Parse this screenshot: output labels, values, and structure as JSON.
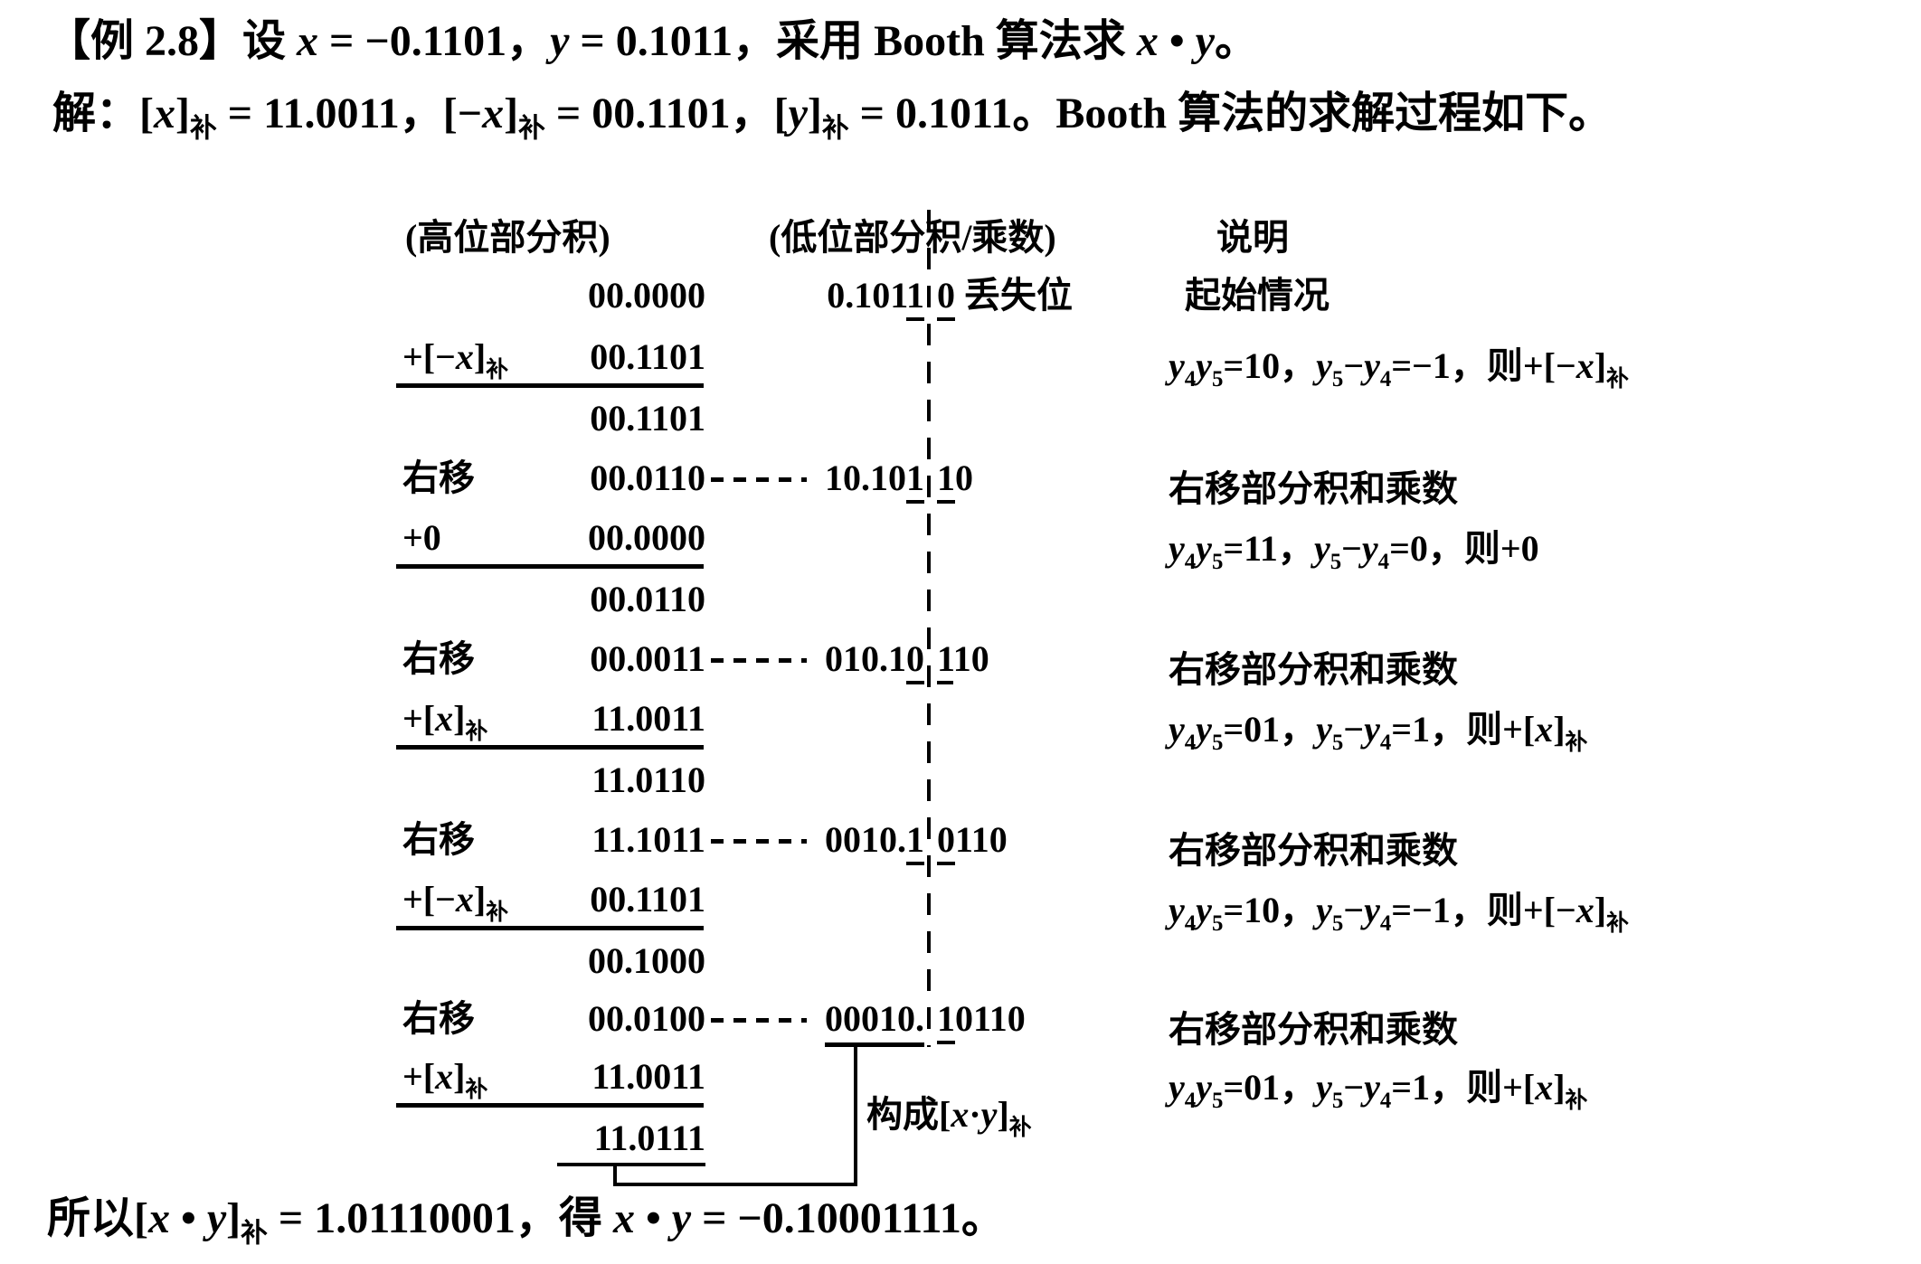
{
  "colors": {
    "ink": "#000000",
    "paper": "#ffffff"
  },
  "line1": [
    [
      "【例 2.8】",
      "b"
    ],
    [
      "设 ",
      ""
    ],
    [
      "x",
      "i"
    ],
    [
      " = −0.1101，",
      ""
    ],
    [
      "y",
      "i"
    ],
    [
      " = 0.1011，采用 Booth 算法求 ",
      ""
    ],
    [
      "x",
      "i"
    ],
    [
      " • ",
      ""
    ],
    [
      "y",
      "i"
    ],
    [
      "。",
      ""
    ]
  ],
  "line2": [
    [
      "解：[",
      ""
    ],
    [
      "x",
      "i"
    ],
    [
      "]",
      ""
    ],
    [
      "补",
      "s"
    ],
    [
      " = 11.0011，[−",
      ""
    ],
    [
      "x",
      "i"
    ],
    [
      "]",
      ""
    ],
    [
      "补",
      "s"
    ],
    [
      " = 00.1101，[",
      ""
    ],
    [
      "y",
      "i"
    ],
    [
      "]",
      ""
    ],
    [
      "补",
      "s"
    ],
    [
      " = 0.1011。Booth 算法的求解过程如下。",
      ""
    ]
  ],
  "table": {
    "header": {
      "high": "(高位部分积)",
      "low": "(低位部分积/乘数)",
      "note": "说明"
    },
    "r1": {
      "num": "00.0000",
      "low_pre": [
        [
          "0.101",
          ""
        ],
        [
          "1",
          "u"
        ]
      ],
      "low_post": [
        [
          "0",
          "u"
        ],
        [
          " 丢失位",
          ""
        ]
      ],
      "note": [
        [
          "起始情况",
          ""
        ]
      ]
    },
    "r2": {
      "label": [
        [
          "+[−",
          ""
        ],
        [
          "x",
          "i"
        ],
        [
          "]",
          ""
        ],
        [
          "补",
          "s"
        ]
      ],
      "num": "00.1101",
      "note": [
        [
          "y",
          "i"
        ],
        [
          "4",
          "s"
        ],
        [
          "y",
          "i"
        ],
        [
          "5",
          "s"
        ],
        [
          "=10，",
          ""
        ],
        [
          "y",
          "i"
        ],
        [
          "5",
          "s"
        ],
        [
          "−",
          ""
        ],
        [
          "y",
          "i"
        ],
        [
          "4",
          "s"
        ],
        [
          "=−1，则+[−",
          ""
        ],
        [
          "x",
          "i"
        ],
        [
          "]",
          ""
        ],
        [
          "补",
          "s"
        ]
      ]
    },
    "r3": {
      "num": "00.1101"
    },
    "r4": {
      "label": [
        [
          "右移",
          ""
        ]
      ],
      "num": "00.0110",
      "low_pre": [
        [
          "10.10",
          ""
        ],
        [
          "1",
          "u"
        ]
      ],
      "low_post": [
        [
          "1",
          "u"
        ],
        [
          "0",
          ""
        ]
      ],
      "note": [
        [
          "右移部分积和乘数",
          ""
        ]
      ]
    },
    "r5": {
      "label": [
        [
          "+0",
          ""
        ]
      ],
      "num": "00.0000",
      "note": [
        [
          "y",
          "i"
        ],
        [
          "4",
          "s"
        ],
        [
          "y",
          "i"
        ],
        [
          "5",
          "s"
        ],
        [
          "=11，",
          ""
        ],
        [
          "y",
          "i"
        ],
        [
          "5",
          "s"
        ],
        [
          "−",
          ""
        ],
        [
          "y",
          "i"
        ],
        [
          "4",
          "s"
        ],
        [
          "=0，则+0",
          ""
        ]
      ]
    },
    "r6": {
      "num": "00.0110"
    },
    "r7": {
      "label": [
        [
          "右移",
          ""
        ]
      ],
      "num": "00.0011",
      "low_pre": [
        [
          "010.1",
          ""
        ],
        [
          "0",
          "u"
        ]
      ],
      "low_post": [
        [
          "1",
          "u"
        ],
        [
          "10",
          ""
        ]
      ],
      "note": [
        [
          "右移部分积和乘数",
          ""
        ]
      ]
    },
    "r8": {
      "label": [
        [
          "+[",
          ""
        ],
        [
          "x",
          "i"
        ],
        [
          "]",
          ""
        ],
        [
          "补",
          "s"
        ]
      ],
      "num": "11.0011",
      "note": [
        [
          "y",
          "i"
        ],
        [
          "4",
          "s"
        ],
        [
          "y",
          "i"
        ],
        [
          "5",
          "s"
        ],
        [
          "=01，",
          ""
        ],
        [
          "y",
          "i"
        ],
        [
          "5",
          "s"
        ],
        [
          "−",
          ""
        ],
        [
          "y",
          "i"
        ],
        [
          "4",
          "s"
        ],
        [
          "=1，则+[",
          ""
        ],
        [
          "x",
          "i"
        ],
        [
          "]",
          ""
        ],
        [
          "补",
          "s"
        ]
      ]
    },
    "r9": {
      "num": "11.0110"
    },
    "r10": {
      "label": [
        [
          "右移",
          ""
        ]
      ],
      "num": "11.1011",
      "low_pre": [
        [
          "0010.",
          ""
        ],
        [
          "1",
          "u"
        ]
      ],
      "low_post": [
        [
          "0",
          "u"
        ],
        [
          "110",
          ""
        ]
      ],
      "note": [
        [
          "右移部分积和乘数",
          ""
        ]
      ]
    },
    "r11": {
      "label": [
        [
          "+[−",
          ""
        ],
        [
          "x",
          "i"
        ],
        [
          "]",
          ""
        ],
        [
          "补",
          "s"
        ]
      ],
      "num": "00.1101",
      "note": [
        [
          "y",
          "i"
        ],
        [
          "4",
          "s"
        ],
        [
          "y",
          "i"
        ],
        [
          "5",
          "s"
        ],
        [
          "=10，",
          ""
        ],
        [
          "y",
          "i"
        ],
        [
          "5",
          "s"
        ],
        [
          "−",
          ""
        ],
        [
          "y",
          "i"
        ],
        [
          "4",
          "s"
        ],
        [
          "=−1，则+[−",
          ""
        ],
        [
          "x",
          "i"
        ],
        [
          "]",
          ""
        ],
        [
          "补",
          "s"
        ]
      ]
    },
    "r12": {
      "num": "00.1000"
    },
    "r13": {
      "label": [
        [
          "右移",
          ""
        ]
      ],
      "num": "00.0100",
      "low_pre": [
        [
          "00010.",
          "U"
        ]
      ],
      "low_post": [
        [
          "1",
          "u"
        ],
        [
          "0110",
          ""
        ]
      ],
      "note": [
        [
          "右移部分积和乘数",
          ""
        ]
      ]
    },
    "r14": {
      "label": [
        [
          "+[",
          ""
        ],
        [
          "x",
          "i"
        ],
        [
          "]",
          ""
        ],
        [
          "补",
          "s"
        ]
      ],
      "num": "11.0011",
      "note": [
        [
          "y",
          "i"
        ],
        [
          "4",
          "s"
        ],
        [
          "y",
          "i"
        ],
        [
          "5",
          "s"
        ],
        [
          "=01，",
          ""
        ],
        [
          "y",
          "i"
        ],
        [
          "5",
          "s"
        ],
        [
          "−",
          ""
        ],
        [
          "y",
          "i"
        ],
        [
          "4",
          "s"
        ],
        [
          "=1，则+[",
          ""
        ],
        [
          "x",
          "i"
        ],
        [
          "]",
          ""
        ],
        [
          "补",
          "s"
        ]
      ]
    },
    "r15": {
      "num": "11.0111"
    }
  },
  "connector_label": [
    [
      "构成[",
      ""
    ],
    [
      "x",
      "i"
    ],
    [
      "·",
      ""
    ],
    [
      "y",
      "i"
    ],
    [
      "]",
      ""
    ],
    [
      "补",
      "s"
    ]
  ],
  "bottom": [
    [
      "所以[",
      ""
    ],
    [
      "x",
      "i"
    ],
    [
      " • ",
      ""
    ],
    [
      "y",
      "i"
    ],
    [
      "]",
      ""
    ],
    [
      "补",
      "s"
    ],
    [
      " = 1.01110001，得 ",
      ""
    ],
    [
      "x",
      "i"
    ],
    [
      " • ",
      ""
    ],
    [
      "y",
      "i"
    ],
    [
      " = −0.10001111。",
      ""
    ]
  ]
}
